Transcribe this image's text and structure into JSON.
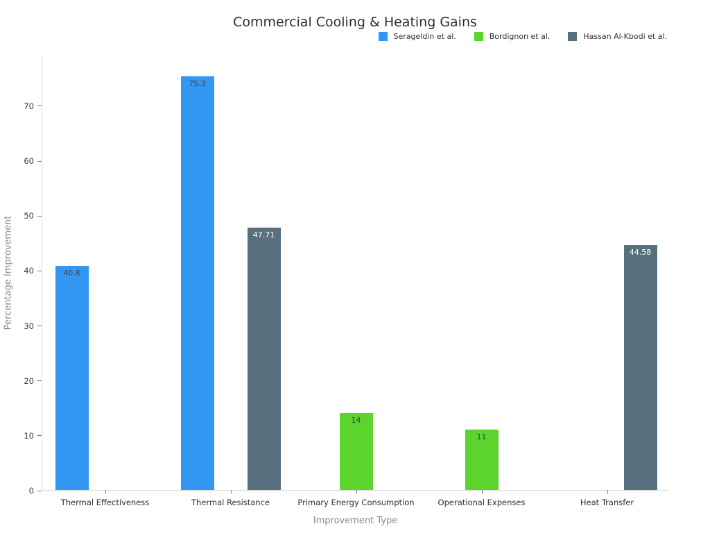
{
  "chart_data": {
    "type": "bar",
    "title": "Commercial Cooling & Heating Gains",
    "xlabel": "Improvement Type",
    "ylabel": "Percentage Improvement",
    "categories": [
      "Thermal Effectiveness",
      "Thermal Resistance",
      "Primary Energy Consumption",
      "Operational Expenses",
      "Heat Transfer"
    ],
    "series": [
      {
        "name": "Serageldin et al.",
        "color": "#3296F3",
        "value_label_color": "#44474a",
        "values": [
          40.8,
          75.3,
          null,
          null,
          null
        ]
      },
      {
        "name": "Bordignon et al.",
        "color": "#5DD32D",
        "value_label_color": "#37412f",
        "values": [
          null,
          null,
          14,
          11,
          null
        ]
      },
      {
        "name": "Hassan Al-Kbodi et al.",
        "color": "#56707D",
        "value_label_color": "#ffffff",
        "values": [
          null,
          47.71,
          null,
          null,
          44.58
        ]
      }
    ],
    "yticks": [
      0,
      10,
      20,
      30,
      40,
      50,
      60,
      70
    ],
    "ylim": [
      0,
      79.2
    ],
    "grid": false,
    "legend_position": "top-right",
    "background": "#ffffff",
    "spine_color": "#d9d9d9"
  }
}
